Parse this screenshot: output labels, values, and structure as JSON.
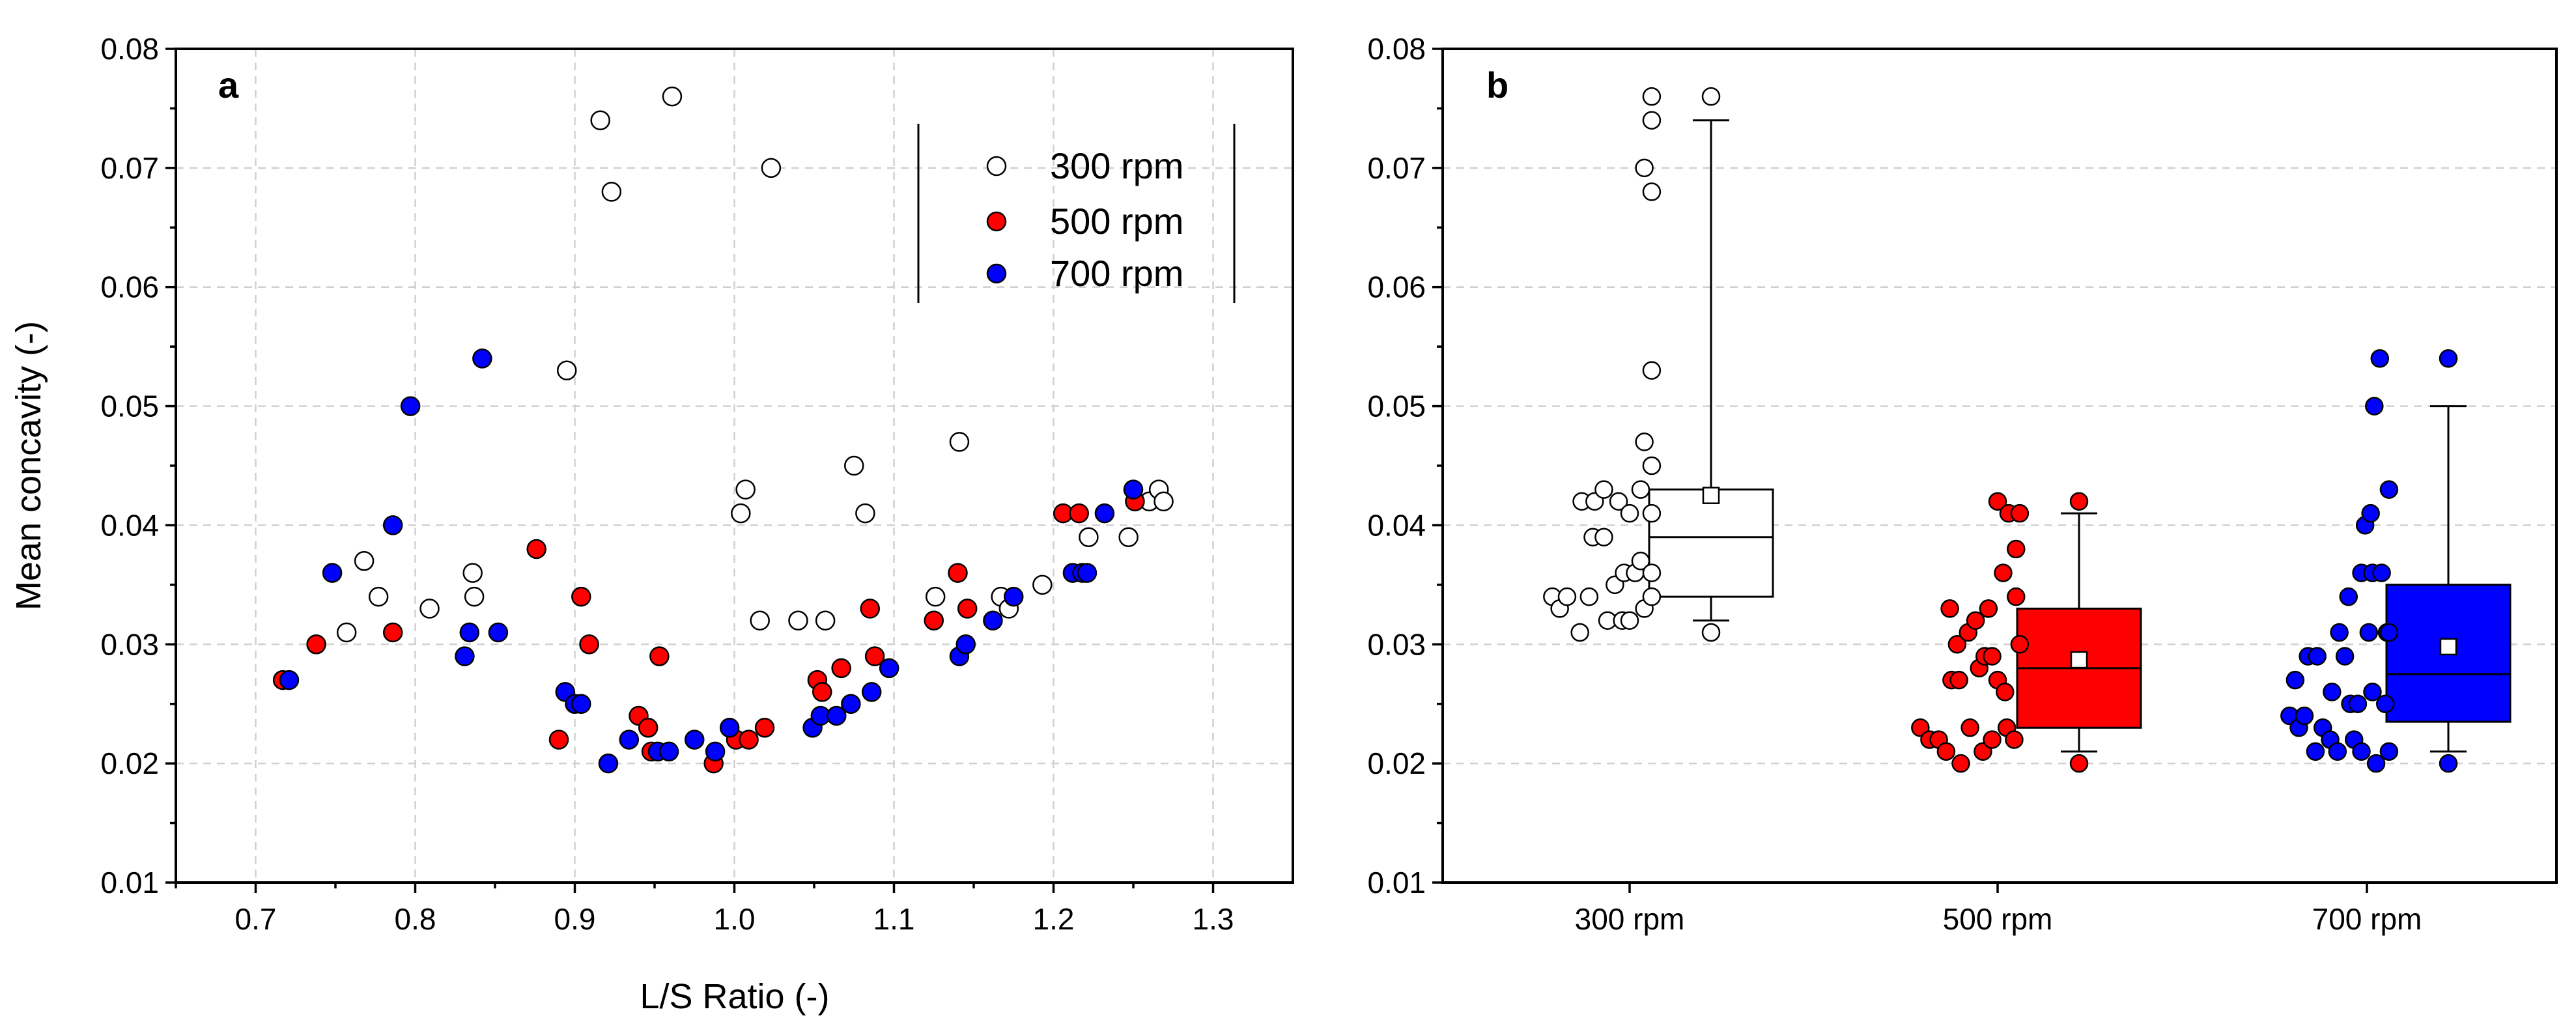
{
  "chart_data": [
    {
      "type": "scatter",
      "panel_label": "a",
      "xlabel": "L/S Ratio (-)",
      "ylabel": "Mean concavity (-)",
      "xlim": [
        0.65,
        1.35
      ],
      "ylim": [
        0.01,
        0.08
      ],
      "xticks": [
        "0.7",
        "0.8",
        "0.9",
        "1.0",
        "1.1",
        "1.2",
        "1.3"
      ],
      "yticks": [
        "0.01",
        "0.02",
        "0.03",
        "0.04",
        "0.05",
        "0.06",
        "0.07",
        "0.08"
      ],
      "grid": true,
      "legend_position": "top-right",
      "series": [
        {
          "name": "300 rpm",
          "color": "#ffffff",
          "stroke": "#000000",
          "points": [
            [
              0.757,
              0.031
            ],
            [
              0.768,
              0.037
            ],
            [
              0.777,
              0.034
            ],
            [
              0.809,
              0.033
            ],
            [
              0.836,
              0.036
            ],
            [
              0.837,
              0.034
            ],
            [
              0.895,
              0.053
            ],
            [
              0.916,
              0.074
            ],
            [
              0.923,
              0.068
            ],
            [
              0.961,
              0.076
            ],
            [
              1.004,
              0.041
            ],
            [
              1.007,
              0.043
            ],
            [
              1.016,
              0.032
            ],
            [
              1.023,
              0.07
            ],
            [
              1.04,
              0.032
            ],
            [
              1.057,
              0.032
            ],
            [
              1.075,
              0.045
            ],
            [
              1.082,
              0.041
            ],
            [
              1.126,
              0.034
            ],
            [
              1.141,
              0.047
            ],
            [
              1.167,
              0.034
            ],
            [
              1.172,
              0.033
            ],
            [
              1.193,
              0.035
            ],
            [
              1.222,
              0.039
            ],
            [
              1.247,
              0.039
            ],
            [
              1.26,
              0.042
            ],
            [
              1.266,
              0.043
            ],
            [
              1.269,
              0.042
            ]
          ]
        },
        {
          "name": "500 rpm",
          "color": "#ff0000",
          "stroke": "#000000",
          "points": [
            [
              0.717,
              0.027
            ],
            [
              0.738,
              0.03
            ],
            [
              0.786,
              0.031
            ],
            [
              0.876,
              0.038
            ],
            [
              0.89,
              0.022
            ],
            [
              0.904,
              0.034
            ],
            [
              0.909,
              0.03
            ],
            [
              0.94,
              0.024
            ],
            [
              0.946,
              0.023
            ],
            [
              0.948,
              0.021
            ],
            [
              0.953,
              0.029
            ],
            [
              0.987,
              0.02
            ],
            [
              1.001,
              0.022
            ],
            [
              1.009,
              0.022
            ],
            [
              1.019,
              0.023
            ],
            [
              1.052,
              0.027
            ],
            [
              1.055,
              0.026
            ],
            [
              1.067,
              0.028
            ],
            [
              1.085,
              0.033
            ],
            [
              1.088,
              0.029
            ],
            [
              1.125,
              0.032
            ],
            [
              1.14,
              0.036
            ],
            [
              1.146,
              0.033
            ],
            [
              1.206,
              0.041
            ],
            [
              1.216,
              0.041
            ],
            [
              1.251,
              0.042
            ]
          ]
        },
        {
          "name": "700 rpm",
          "color": "#0000ff",
          "stroke": "#000000",
          "points": [
            [
              0.721,
              0.027
            ],
            [
              0.748,
              0.036
            ],
            [
              0.786,
              0.04
            ],
            [
              0.797,
              0.05
            ],
            [
              0.831,
              0.029
            ],
            [
              0.834,
              0.031
            ],
            [
              0.842,
              0.054
            ],
            [
              0.852,
              0.031
            ],
            [
              0.894,
              0.026
            ],
            [
              0.9,
              0.025
            ],
            [
              0.904,
              0.025
            ],
            [
              0.921,
              0.02
            ],
            [
              0.934,
              0.022
            ],
            [
              0.952,
              0.021
            ],
            [
              0.959,
              0.021
            ],
            [
              0.975,
              0.022
            ],
            [
              0.988,
              0.021
            ],
            [
              0.997,
              0.023
            ],
            [
              1.049,
              0.023
            ],
            [
              1.054,
              0.024
            ],
            [
              1.064,
              0.024
            ],
            [
              1.073,
              0.025
            ],
            [
              1.086,
              0.026
            ],
            [
              1.097,
              0.028
            ],
            [
              1.141,
              0.029
            ],
            [
              1.145,
              0.03
            ],
            [
              1.162,
              0.032
            ],
            [
              1.175,
              0.034
            ],
            [
              1.212,
              0.036
            ],
            [
              1.218,
              0.036
            ],
            [
              1.221,
              0.036
            ],
            [
              1.232,
              0.041
            ],
            [
              1.25,
              0.043
            ]
          ]
        }
      ]
    },
    {
      "type": "box",
      "panel_label": "b",
      "ylim": [
        0.01,
        0.08
      ],
      "yticks": [
        "0.01",
        "0.02",
        "0.03",
        "0.04",
        "0.05",
        "0.06",
        "0.07",
        "0.08"
      ],
      "categories": [
        "300 rpm",
        "500 rpm",
        "700 rpm"
      ],
      "grid": true,
      "groups": [
        {
          "name": "300 rpm",
          "color": "#ffffff",
          "stroke": "#000000",
          "q1": 0.034,
          "median": 0.039,
          "q3": 0.043,
          "mean": 0.0425,
          "whisker_low": 0.032,
          "whisker_high": 0.074,
          "outliers": [
            0.031,
            0.076
          ],
          "points": [
            [
              -0.42,
              0.034
            ],
            [
              -0.38,
              0.033
            ],
            [
              -0.34,
              0.034
            ],
            [
              -0.27,
              0.031
            ],
            [
              -0.26,
              0.042
            ],
            [
              -0.22,
              0.034
            ],
            [
              -0.2,
              0.039
            ],
            [
              -0.19,
              0.042
            ],
            [
              -0.14,
              0.043
            ],
            [
              -0.14,
              0.039
            ],
            [
              -0.12,
              0.032
            ],
            [
              -0.08,
              0.035
            ],
            [
              -0.06,
              0.042
            ],
            [
              -0.04,
              0.032
            ],
            [
              -0.03,
              0.036
            ],
            [
              0.0,
              0.041
            ],
            [
              0.0,
              0.032
            ],
            [
              0.03,
              0.036
            ],
            [
              0.06,
              0.043
            ],
            [
              0.06,
              0.037
            ],
            [
              0.08,
              0.047
            ],
            [
              0.08,
              0.033
            ],
            [
              0.08,
              0.07
            ],
            [
              0.12,
              0.034
            ],
            [
              0.12,
              0.045
            ],
            [
              0.12,
              0.041
            ],
            [
              0.12,
              0.053
            ],
            [
              0.12,
              0.068
            ],
            [
              0.12,
              0.074
            ],
            [
              0.12,
              0.076
            ],
            [
              0.12,
              0.036
            ]
          ]
        },
        {
          "name": "500 rpm",
          "color": "#ff0000",
          "stroke": "#000000",
          "q1": 0.023,
          "median": 0.028,
          "q3": 0.033,
          "mean": 0.0287,
          "whisker_low": 0.021,
          "whisker_high": 0.041,
          "outliers": [
            0.02,
            0.042
          ],
          "points": [
            [
              -0.42,
              0.023
            ],
            [
              -0.37,
              0.022
            ],
            [
              -0.32,
              0.022
            ],
            [
              -0.28,
              0.021
            ],
            [
              -0.26,
              0.033
            ],
            [
              -0.25,
              0.027
            ],
            [
              -0.22,
              0.03
            ],
            [
              -0.21,
              0.027
            ],
            [
              -0.2,
              0.02
            ],
            [
              -0.16,
              0.031
            ],
            [
              -0.15,
              0.023
            ],
            [
              -0.12,
              0.032
            ],
            [
              -0.1,
              0.028
            ],
            [
              -0.08,
              0.021
            ],
            [
              -0.07,
              0.029
            ],
            [
              -0.05,
              0.033
            ],
            [
              -0.03,
              0.022
            ],
            [
              -0.03,
              0.029
            ],
            [
              0.0,
              0.027
            ],
            [
              0.0,
              0.042
            ],
            [
              0.03,
              0.036
            ],
            [
              0.04,
              0.026
            ],
            [
              0.05,
              0.023
            ],
            [
              0.06,
              0.041
            ],
            [
              0.09,
              0.022
            ],
            [
              0.1,
              0.034
            ],
            [
              0.1,
              0.038
            ],
            [
              0.12,
              0.041
            ],
            [
              0.12,
              0.03
            ]
          ]
        },
        {
          "name": "700 rpm",
          "color": "#0000ff",
          "stroke": "#000000",
          "q1": 0.0235,
          "median": 0.0275,
          "q3": 0.035,
          "mean": 0.0298,
          "whisker_low": 0.021,
          "whisker_high": 0.05,
          "outliers": [
            0.02,
            0.054
          ],
          "points": [
            [
              -0.42,
              0.024
            ],
            [
              -0.39,
              0.027
            ],
            [
              -0.37,
              0.023
            ],
            [
              -0.34,
              0.024
            ],
            [
              -0.32,
              0.029
            ],
            [
              -0.28,
              0.021
            ],
            [
              -0.27,
              0.029
            ],
            [
              -0.24,
              0.023
            ],
            [
              -0.2,
              0.022
            ],
            [
              -0.19,
              0.026
            ],
            [
              -0.16,
              0.021
            ],
            [
              -0.15,
              0.031
            ],
            [
              -0.12,
              0.029
            ],
            [
              -0.1,
              0.034
            ],
            [
              -0.09,
              0.025
            ],
            [
              -0.07,
              0.022
            ],
            [
              -0.05,
              0.025
            ],
            [
              -0.03,
              0.021
            ],
            [
              -0.03,
              0.036
            ],
            [
              -0.01,
              0.04
            ],
            [
              0.01,
              0.031
            ],
            [
              0.02,
              0.041
            ],
            [
              0.03,
              0.026
            ],
            [
              0.03,
              0.036
            ],
            [
              0.04,
              0.05
            ],
            [
              0.05,
              0.02
            ],
            [
              0.07,
              0.054
            ],
            [
              0.08,
              0.036
            ],
            [
              0.1,
              0.025
            ],
            [
              0.11,
              0.031
            ],
            [
              0.12,
              0.043
            ],
            [
              0.12,
              0.021
            ],
            [
              0.12,
              0.031
            ]
          ]
        }
      ]
    }
  ]
}
